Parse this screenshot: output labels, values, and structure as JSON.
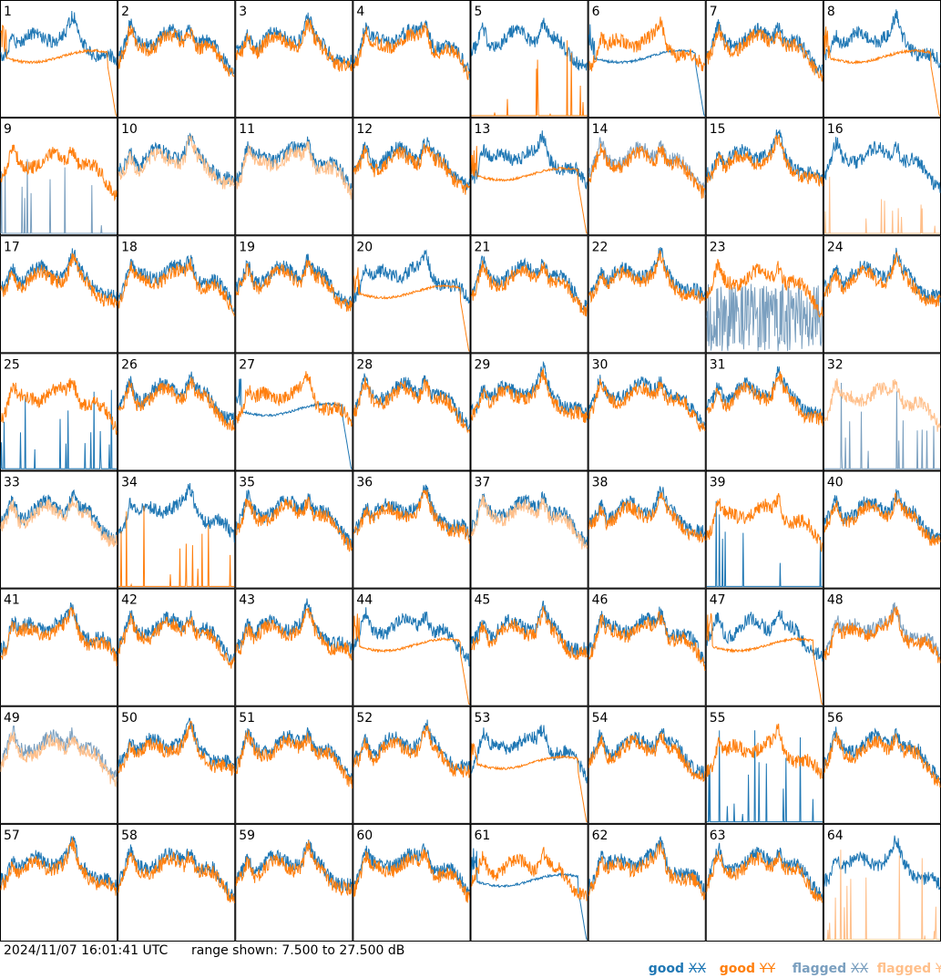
{
  "footer": {
    "timestamp": "2024/11/07 16:01:41 UTC",
    "range_label": "range shown: 7.500 to 27.500 dB"
  },
  "legend": [
    {
      "id": "good-xx",
      "label": "good",
      "symbol": "XX",
      "color": "#1f77b4"
    },
    {
      "id": "good-yy",
      "label": "good",
      "symbol": "YY",
      "color": "#ff7f0e"
    },
    {
      "id": "flagged-xx",
      "label": "flagged",
      "symbol": "XX",
      "color": "#7a9fbf"
    },
    {
      "id": "flagged-yy",
      "label": "flagged",
      "symbol": "YY",
      "color": "#ffbf8a"
    }
  ],
  "chart_data": {
    "type": "line",
    "panel_layout": {
      "rows": 8,
      "cols": 8
    },
    "y_range_db": [
      7.5,
      27.5
    ],
    "series_kinds": [
      "good XX",
      "good YY",
      "flagged XX",
      "flagged YY"
    ],
    "panels": [
      {
        "label": "1",
        "xx": "good",
        "yy": "good",
        "xx_shape": "normal",
        "yy_shape": "flat"
      },
      {
        "label": "2",
        "xx": "good",
        "yy": "good",
        "xx_shape": "normal",
        "yy_shape": "normal"
      },
      {
        "label": "3",
        "xx": "good",
        "yy": "good",
        "xx_shape": "normal",
        "yy_shape": "normal"
      },
      {
        "label": "4",
        "xx": "good",
        "yy": "good",
        "xx_shape": "normal",
        "yy_shape": "normal"
      },
      {
        "label": "5",
        "xx": "good",
        "yy": "good",
        "xx_shape": "normal",
        "yy_shape": "spikes"
      },
      {
        "label": "6",
        "xx": "good",
        "yy": "good",
        "xx_shape": "flat",
        "yy_shape": "normal"
      },
      {
        "label": "7",
        "xx": "good",
        "yy": "good",
        "xx_shape": "normal",
        "yy_shape": "normal"
      },
      {
        "label": "8",
        "xx": "good",
        "yy": "good",
        "xx_shape": "normal",
        "yy_shape": "flat"
      },
      {
        "label": "9",
        "xx": "flagged",
        "yy": "good",
        "xx_shape": "spikes",
        "yy_shape": "normal"
      },
      {
        "label": "10",
        "xx": "good",
        "yy": "flagged",
        "xx_shape": "normal",
        "yy_shape": "normal"
      },
      {
        "label": "11",
        "xx": "good",
        "yy": "flagged",
        "xx_shape": "normal",
        "yy_shape": "normal"
      },
      {
        "label": "12",
        "xx": "good",
        "yy": "good",
        "xx_shape": "normal",
        "yy_shape": "normal"
      },
      {
        "label": "13",
        "xx": "good",
        "yy": "good",
        "xx_shape": "normal",
        "yy_shape": "flat"
      },
      {
        "label": "14",
        "xx": "flagged",
        "yy": "good",
        "xx_shape": "normal",
        "yy_shape": "normal"
      },
      {
        "label": "15",
        "xx": "good",
        "yy": "good",
        "xx_shape": "normal",
        "yy_shape": "normal"
      },
      {
        "label": "16",
        "xx": "good",
        "yy": "flagged",
        "xx_shape": "normal",
        "yy_shape": "spikes"
      },
      {
        "label": "17",
        "xx": "good",
        "yy": "good",
        "xx_shape": "normal",
        "yy_shape": "normal"
      },
      {
        "label": "18",
        "xx": "good",
        "yy": "good",
        "xx_shape": "normal",
        "yy_shape": "normal"
      },
      {
        "label": "19",
        "xx": "good",
        "yy": "good",
        "xx_shape": "normal",
        "yy_shape": "normal"
      },
      {
        "label": "20",
        "xx": "good",
        "yy": "good",
        "xx_shape": "normal",
        "yy_shape": "flat"
      },
      {
        "label": "21",
        "xx": "good",
        "yy": "good",
        "xx_shape": "normal",
        "yy_shape": "normal"
      },
      {
        "label": "22",
        "xx": "good",
        "yy": "good",
        "xx_shape": "normal",
        "yy_shape": "normal"
      },
      {
        "label": "23",
        "xx": "flagged",
        "yy": "good",
        "xx_shape": "noisy",
        "yy_shape": "normal"
      },
      {
        "label": "24",
        "xx": "good",
        "yy": "good",
        "xx_shape": "normal",
        "yy_shape": "normal"
      },
      {
        "label": "25",
        "xx": "good",
        "yy": "good",
        "xx_shape": "spikes",
        "yy_shape": "normal"
      },
      {
        "label": "26",
        "xx": "good",
        "yy": "good",
        "xx_shape": "normal",
        "yy_shape": "normal"
      },
      {
        "label": "27",
        "xx": "good",
        "yy": "good",
        "xx_shape": "flat",
        "yy_shape": "normal"
      },
      {
        "label": "28",
        "xx": "good",
        "yy": "good",
        "xx_shape": "normal",
        "yy_shape": "normal"
      },
      {
        "label": "29",
        "xx": "good",
        "yy": "good",
        "xx_shape": "normal",
        "yy_shape": "normal"
      },
      {
        "label": "30",
        "xx": "good",
        "yy": "good",
        "xx_shape": "normal",
        "yy_shape": "normal"
      },
      {
        "label": "31",
        "xx": "good",
        "yy": "good",
        "xx_shape": "normal",
        "yy_shape": "normal"
      },
      {
        "label": "32",
        "xx": "flagged",
        "yy": "flagged",
        "xx_shape": "spikes",
        "yy_shape": "normal"
      },
      {
        "label": "33",
        "xx": "good",
        "yy": "flagged",
        "xx_shape": "normal",
        "yy_shape": "normal"
      },
      {
        "label": "34",
        "xx": "good",
        "yy": "good",
        "xx_shape": "normal",
        "yy_shape": "spikes"
      },
      {
        "label": "35",
        "xx": "good",
        "yy": "good",
        "xx_shape": "normal",
        "yy_shape": "normal"
      },
      {
        "label": "36",
        "xx": "good",
        "yy": "good",
        "xx_shape": "normal",
        "yy_shape": "normal"
      },
      {
        "label": "37",
        "xx": "good",
        "yy": "flagged",
        "xx_shape": "normal",
        "yy_shape": "normal"
      },
      {
        "label": "38",
        "xx": "good",
        "yy": "good",
        "xx_shape": "normal",
        "yy_shape": "normal"
      },
      {
        "label": "39",
        "xx": "good",
        "yy": "good",
        "xx_shape": "spikes",
        "yy_shape": "normal"
      },
      {
        "label": "40",
        "xx": "good",
        "yy": "good",
        "xx_shape": "normal",
        "yy_shape": "normal"
      },
      {
        "label": "41",
        "xx": "good",
        "yy": "good",
        "xx_shape": "normal",
        "yy_shape": "normal"
      },
      {
        "label": "42",
        "xx": "good",
        "yy": "good",
        "xx_shape": "normal",
        "yy_shape": "normal"
      },
      {
        "label": "43",
        "xx": "good",
        "yy": "good",
        "xx_shape": "normal",
        "yy_shape": "normal"
      },
      {
        "label": "44",
        "xx": "good",
        "yy": "good",
        "xx_shape": "normal",
        "yy_shape": "flat"
      },
      {
        "label": "45",
        "xx": "good",
        "yy": "good",
        "xx_shape": "normal",
        "yy_shape": "normal"
      },
      {
        "label": "46",
        "xx": "good",
        "yy": "good",
        "xx_shape": "normal",
        "yy_shape": "normal"
      },
      {
        "label": "47",
        "xx": "good",
        "yy": "good",
        "xx_shape": "normal",
        "yy_shape": "flat"
      },
      {
        "label": "48",
        "xx": "flagged",
        "yy": "good",
        "xx_shape": "normal",
        "yy_shape": "normal"
      },
      {
        "label": "49",
        "xx": "flagged",
        "yy": "flagged",
        "xx_shape": "normal",
        "yy_shape": "normal"
      },
      {
        "label": "50",
        "xx": "good",
        "yy": "good",
        "xx_shape": "normal",
        "yy_shape": "normal"
      },
      {
        "label": "51",
        "xx": "good",
        "yy": "good",
        "xx_shape": "normal",
        "yy_shape": "normal"
      },
      {
        "label": "52",
        "xx": "good",
        "yy": "good",
        "xx_shape": "normal",
        "yy_shape": "normal"
      },
      {
        "label": "53",
        "xx": "good",
        "yy": "good",
        "xx_shape": "normal",
        "yy_shape": "flat"
      },
      {
        "label": "54",
        "xx": "good",
        "yy": "good",
        "xx_shape": "normal",
        "yy_shape": "normal"
      },
      {
        "label": "55",
        "xx": "good",
        "yy": "good",
        "xx_shape": "spikes",
        "yy_shape": "normal"
      },
      {
        "label": "56",
        "xx": "good",
        "yy": "good",
        "xx_shape": "normal",
        "yy_shape": "normal"
      },
      {
        "label": "57",
        "xx": "good",
        "yy": "good",
        "xx_shape": "normal",
        "yy_shape": "normal"
      },
      {
        "label": "58",
        "xx": "good",
        "yy": "good",
        "xx_shape": "normal",
        "yy_shape": "normal"
      },
      {
        "label": "59",
        "xx": "good",
        "yy": "good",
        "xx_shape": "normal",
        "yy_shape": "normal"
      },
      {
        "label": "60",
        "xx": "good",
        "yy": "good",
        "xx_shape": "normal",
        "yy_shape": "normal"
      },
      {
        "label": "61",
        "xx": "good",
        "yy": "good",
        "xx_shape": "flat",
        "yy_shape": "normal"
      },
      {
        "label": "62",
        "xx": "good",
        "yy": "good",
        "xx_shape": "normal",
        "yy_shape": "normal"
      },
      {
        "label": "63",
        "xx": "good",
        "yy": "good",
        "xx_shape": "normal",
        "yy_shape": "normal"
      },
      {
        "label": "64",
        "xx": "good",
        "yy": "flagged",
        "xx_shape": "normal",
        "yy_shape": "spikes"
      }
    ]
  }
}
